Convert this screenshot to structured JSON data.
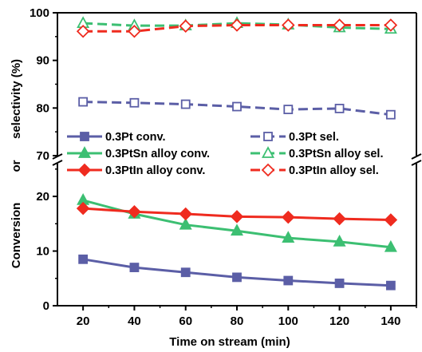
{
  "chart_data": {
    "type": "line",
    "xlabel": "Time on stream (min)",
    "ylabel_parts": [
      "Conversion",
      "or",
      "selectivity (%)"
    ],
    "x": [
      20,
      40,
      60,
      80,
      100,
      120,
      140
    ],
    "x_ticks": [
      "20",
      "40",
      "60",
      "80",
      "100",
      "120",
      "140"
    ],
    "xlim": [
      10,
      150
    ],
    "y_broken_axis": true,
    "lower_ylim": [
      0,
      26
    ],
    "upper_ylim": [
      70,
      100
    ],
    "lower_y_ticks": [
      "0",
      "10",
      "20"
    ],
    "upper_y_ticks": [
      "70",
      "80",
      "90",
      "100"
    ],
    "grid": false,
    "legend_position": "middle",
    "series": [
      {
        "name": "0.3Pt conv.",
        "panel": "lower",
        "style": "solid",
        "marker": "square-filled",
        "color": "#5b5ea6",
        "values": [
          8.5,
          7.0,
          6.1,
          5.2,
          4.6,
          4.1,
          3.7
        ]
      },
      {
        "name": "0.3Pt sel.",
        "panel": "upper",
        "style": "dashed",
        "marker": "square-open",
        "color": "#5b5ea6",
        "values": [
          81.3,
          81.1,
          80.8,
          80.3,
          79.7,
          79.9,
          78.6
        ]
      },
      {
        "name": "0.3PtSn alloy conv.",
        "panel": "lower",
        "style": "solid",
        "marker": "triangle-filled",
        "color": "#3cbf72",
        "values": [
          19.3,
          16.8,
          14.8,
          13.7,
          12.4,
          11.7,
          10.7
        ]
      },
      {
        "name": "0.3PtSn alloy sel.",
        "panel": "upper",
        "style": "dashed",
        "marker": "triangle-open",
        "color": "#3cbf72",
        "values": [
          97.8,
          97.3,
          97.3,
          97.8,
          97.5,
          96.9,
          96.6
        ]
      },
      {
        "name": "0.3PtIn alloy conv.",
        "panel": "lower",
        "style": "solid",
        "marker": "diamond-filled",
        "color": "#ef2b1f",
        "values": [
          17.8,
          17.2,
          16.8,
          16.3,
          16.2,
          15.9,
          15.7
        ]
      },
      {
        "name": "0.3PtIn alloy sel.",
        "panel": "upper",
        "style": "dashed",
        "marker": "diamond-open",
        "color": "#ef2b1f",
        "values": [
          96.1,
          96.1,
          97.2,
          97.4,
          97.4,
          97.4,
          97.4
        ]
      }
    ]
  }
}
